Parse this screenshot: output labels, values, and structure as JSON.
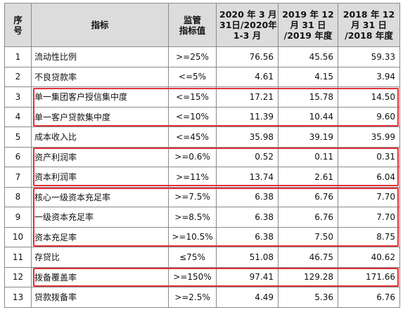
{
  "headers": {
    "idx": [
      "序",
      "号"
    ],
    "name": "指标",
    "req": [
      "监管",
      "指标值"
    ],
    "y2020": [
      "2020 年 3 月",
      "31日/2020年",
      "1-3 月"
    ],
    "y2019": [
      "2019 年 12",
      "月 31 日",
      "/2019 年度"
    ],
    "y2018": [
      "2018 年 12",
      "月 31 日",
      "/2018 年度"
    ]
  },
  "rows": [
    {
      "idx": "1",
      "name": "流动性比例",
      "req": ">=25%",
      "v2020": "76.56",
      "v2019": "45.56",
      "v2018": "59.33"
    },
    {
      "idx": "2",
      "name": "不良贷款率",
      "req": "<=5%",
      "v2020": "4.61",
      "v2019": "4.15",
      "v2018": "3.94"
    },
    {
      "idx": "3",
      "name": "单一集团客户授信集中度",
      "req": "<=15%",
      "v2020": "17.21",
      "v2019": "15.78",
      "v2018": "14.50"
    },
    {
      "idx": "4",
      "name": "单一客户贷款集中度",
      "req": "<=10%",
      "v2020": "11.39",
      "v2019": "10.44",
      "v2018": "9.60"
    },
    {
      "idx": "5",
      "name": "成本收入比",
      "req": "<=45%",
      "v2020": "35.98",
      "v2019": "39.19",
      "v2018": "35.99"
    },
    {
      "idx": "6",
      "name": "资产利润率",
      "req": ">=0.6%",
      "v2020": "0.52",
      "v2019": "0.11",
      "v2018": "0.31"
    },
    {
      "idx": "7",
      "name": "资本利润率",
      "req": ">=11%",
      "v2020": "13.74",
      "v2019": "2.61",
      "v2018": "6.04"
    },
    {
      "idx": "8",
      "name": "核心一级资本充足率",
      "req": ">=7.5%",
      "v2020": "6.38",
      "v2019": "6.76",
      "v2018": "7.70"
    },
    {
      "idx": "9",
      "name": "一级资本充足率",
      "req": ">=8.5%",
      "v2020": "6.38",
      "v2019": "6.76",
      "v2018": "7.70"
    },
    {
      "idx": "10",
      "name": "资本充足率",
      "req": ">=10.5%",
      "v2020": "6.38",
      "v2019": "7.50",
      "v2018": "8.75"
    },
    {
      "idx": "11",
      "name": "存贷比",
      "req": "≤75%",
      "v2020": "51.08",
      "v2019": "46.75",
      "v2018": "40.62"
    },
    {
      "idx": "12",
      "name": "拨备覆盖率",
      "req": ">=150%",
      "v2020": "97.41",
      "v2019": "129.28",
      "v2018": "171.66"
    },
    {
      "idx": "13",
      "name": "贷款拨备率",
      "req": ">=2.5%",
      "v2020": "4.49",
      "v2019": "5.36",
      "v2018": "6.76"
    }
  ],
  "highlight_color": "#e0323a",
  "highlight_groups": [
    [
      "3",
      "4"
    ],
    [
      "6",
      "7"
    ],
    [
      "8",
      "9",
      "10"
    ],
    [
      "12"
    ]
  ]
}
